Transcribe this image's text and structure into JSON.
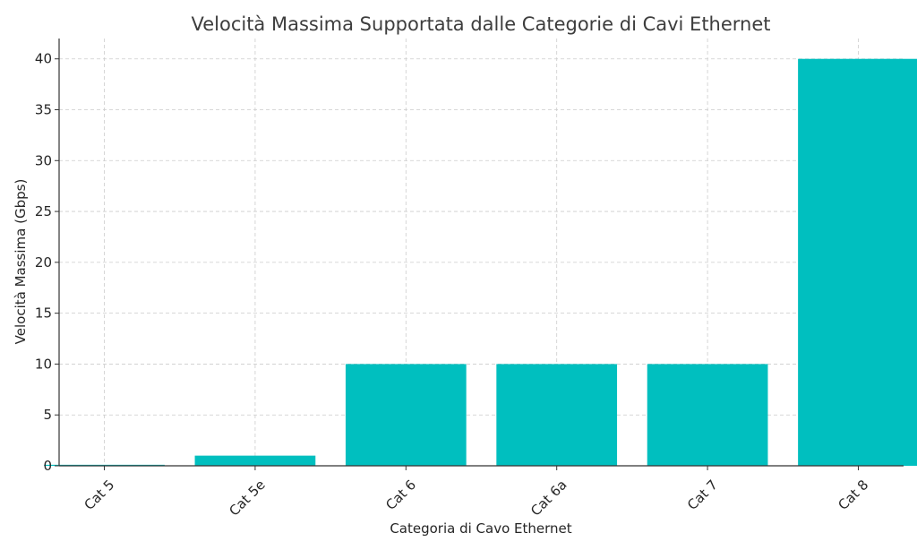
{
  "chart_data": {
    "type": "bar",
    "title": "Velocità Massima Supportata dalle Categorie di Cavi Ethernet",
    "xlabel": "Categoria di Cavo Ethernet",
    "ylabel": "Velocità Massima (Gbps)",
    "categories": [
      "Cat 5",
      "Cat 5e",
      "Cat 6",
      "Cat 6a",
      "Cat 7",
      "Cat 8"
    ],
    "values": [
      0.1,
      1,
      10,
      10,
      10,
      40
    ],
    "ylim": [
      0,
      42
    ],
    "yticks": [
      0,
      5,
      10,
      15,
      20,
      25,
      30,
      35,
      40
    ],
    "grid": true,
    "bar_color": "#00bfbf",
    "x_tick_rotation_deg": 45
  }
}
